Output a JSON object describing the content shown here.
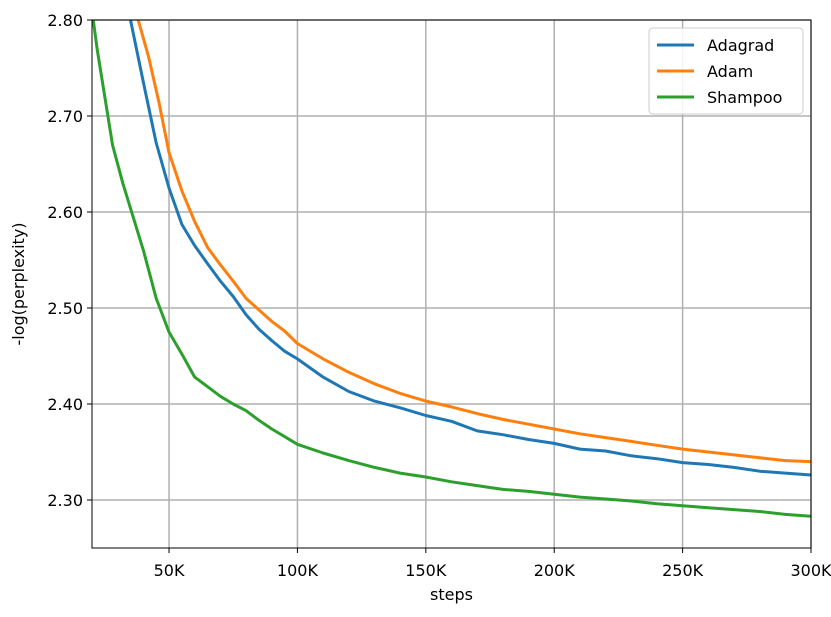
{
  "chart_data": {
    "type": "line",
    "xlabel": "steps",
    "ylabel": "-log(perplexity)",
    "xlim": [
      20000,
      300000
    ],
    "ylim": [
      2.25,
      2.8
    ],
    "xticks": [
      50000,
      100000,
      150000,
      200000,
      250000,
      300000
    ],
    "xtick_labels": [
      "50K",
      "100K",
      "150K",
      "200K",
      "250K",
      "300K"
    ],
    "yticks": [
      2.3,
      2.4,
      2.5,
      2.6,
      2.7,
      2.8
    ],
    "ytick_labels": [
      "2.30",
      "2.40",
      "2.50",
      "2.60",
      "2.70",
      "2.80"
    ],
    "grid": true,
    "legend_position": "top-right",
    "series": [
      {
        "name": "Adagrad",
        "color": "#1f77b4",
        "x": [
          35000,
          40000,
          45000,
          50000,
          55000,
          60000,
          65000,
          70000,
          75000,
          80000,
          85000,
          90000,
          95000,
          100000,
          110000,
          120000,
          130000,
          140000,
          150000,
          160000,
          170000,
          180000,
          190000,
          200000,
          210000,
          220000,
          230000,
          240000,
          250000,
          260000,
          270000,
          280000,
          290000,
          300000
        ],
        "y": [
          2.8,
          2.735,
          2.672,
          2.625,
          2.587,
          2.565,
          2.546,
          2.528,
          2.512,
          2.493,
          2.478,
          2.466,
          2.455,
          2.447,
          2.428,
          2.413,
          2.403,
          2.396,
          2.388,
          2.382,
          2.372,
          2.368,
          2.363,
          2.359,
          2.353,
          2.351,
          2.346,
          2.343,
          2.339,
          2.337,
          2.334,
          2.33,
          2.328,
          2.326
        ]
      },
      {
        "name": "Adam",
        "color": "#ff7f0e",
        "x": [
          38000,
          42000,
          46000,
          50000,
          55000,
          60000,
          65000,
          70000,
          75000,
          80000,
          85000,
          90000,
          95000,
          100000,
          110000,
          120000,
          130000,
          140000,
          150000,
          160000,
          170000,
          180000,
          190000,
          200000,
          210000,
          220000,
          230000,
          240000,
          250000,
          260000,
          270000,
          280000,
          290000,
          300000
        ],
        "y": [
          2.8,
          2.762,
          2.715,
          2.662,
          2.622,
          2.59,
          2.563,
          2.545,
          2.528,
          2.51,
          2.498,
          2.486,
          2.476,
          2.463,
          2.447,
          2.433,
          2.421,
          2.411,
          2.403,
          2.397,
          2.39,
          2.384,
          2.379,
          2.374,
          2.369,
          2.365,
          2.361,
          2.357,
          2.353,
          2.35,
          2.347,
          2.344,
          2.341,
          2.34
        ]
      },
      {
        "name": "Shampoo",
        "color": "#2ca02c",
        "x": [
          20000,
          22000,
          25000,
          28000,
          32000,
          36000,
          40000,
          45000,
          50000,
          55000,
          60000,
          65000,
          70000,
          75000,
          80000,
          85000,
          90000,
          95000,
          100000,
          110000,
          120000,
          130000,
          140000,
          150000,
          160000,
          170000,
          180000,
          190000,
          200000,
          210000,
          220000,
          230000,
          240000,
          250000,
          260000,
          270000,
          280000,
          290000,
          300000
        ],
        "y": [
          2.81,
          2.77,
          2.72,
          2.67,
          2.63,
          2.595,
          2.56,
          2.51,
          2.475,
          2.452,
          2.428,
          2.418,
          2.408,
          2.4,
          2.393,
          2.383,
          2.374,
          2.366,
          2.358,
          2.349,
          2.341,
          2.334,
          2.328,
          2.324,
          2.319,
          2.315,
          2.311,
          2.309,
          2.306,
          2.303,
          2.301,
          2.299,
          2.296,
          2.294,
          2.292,
          2.29,
          2.288,
          2.285,
          2.283
        ]
      }
    ]
  }
}
